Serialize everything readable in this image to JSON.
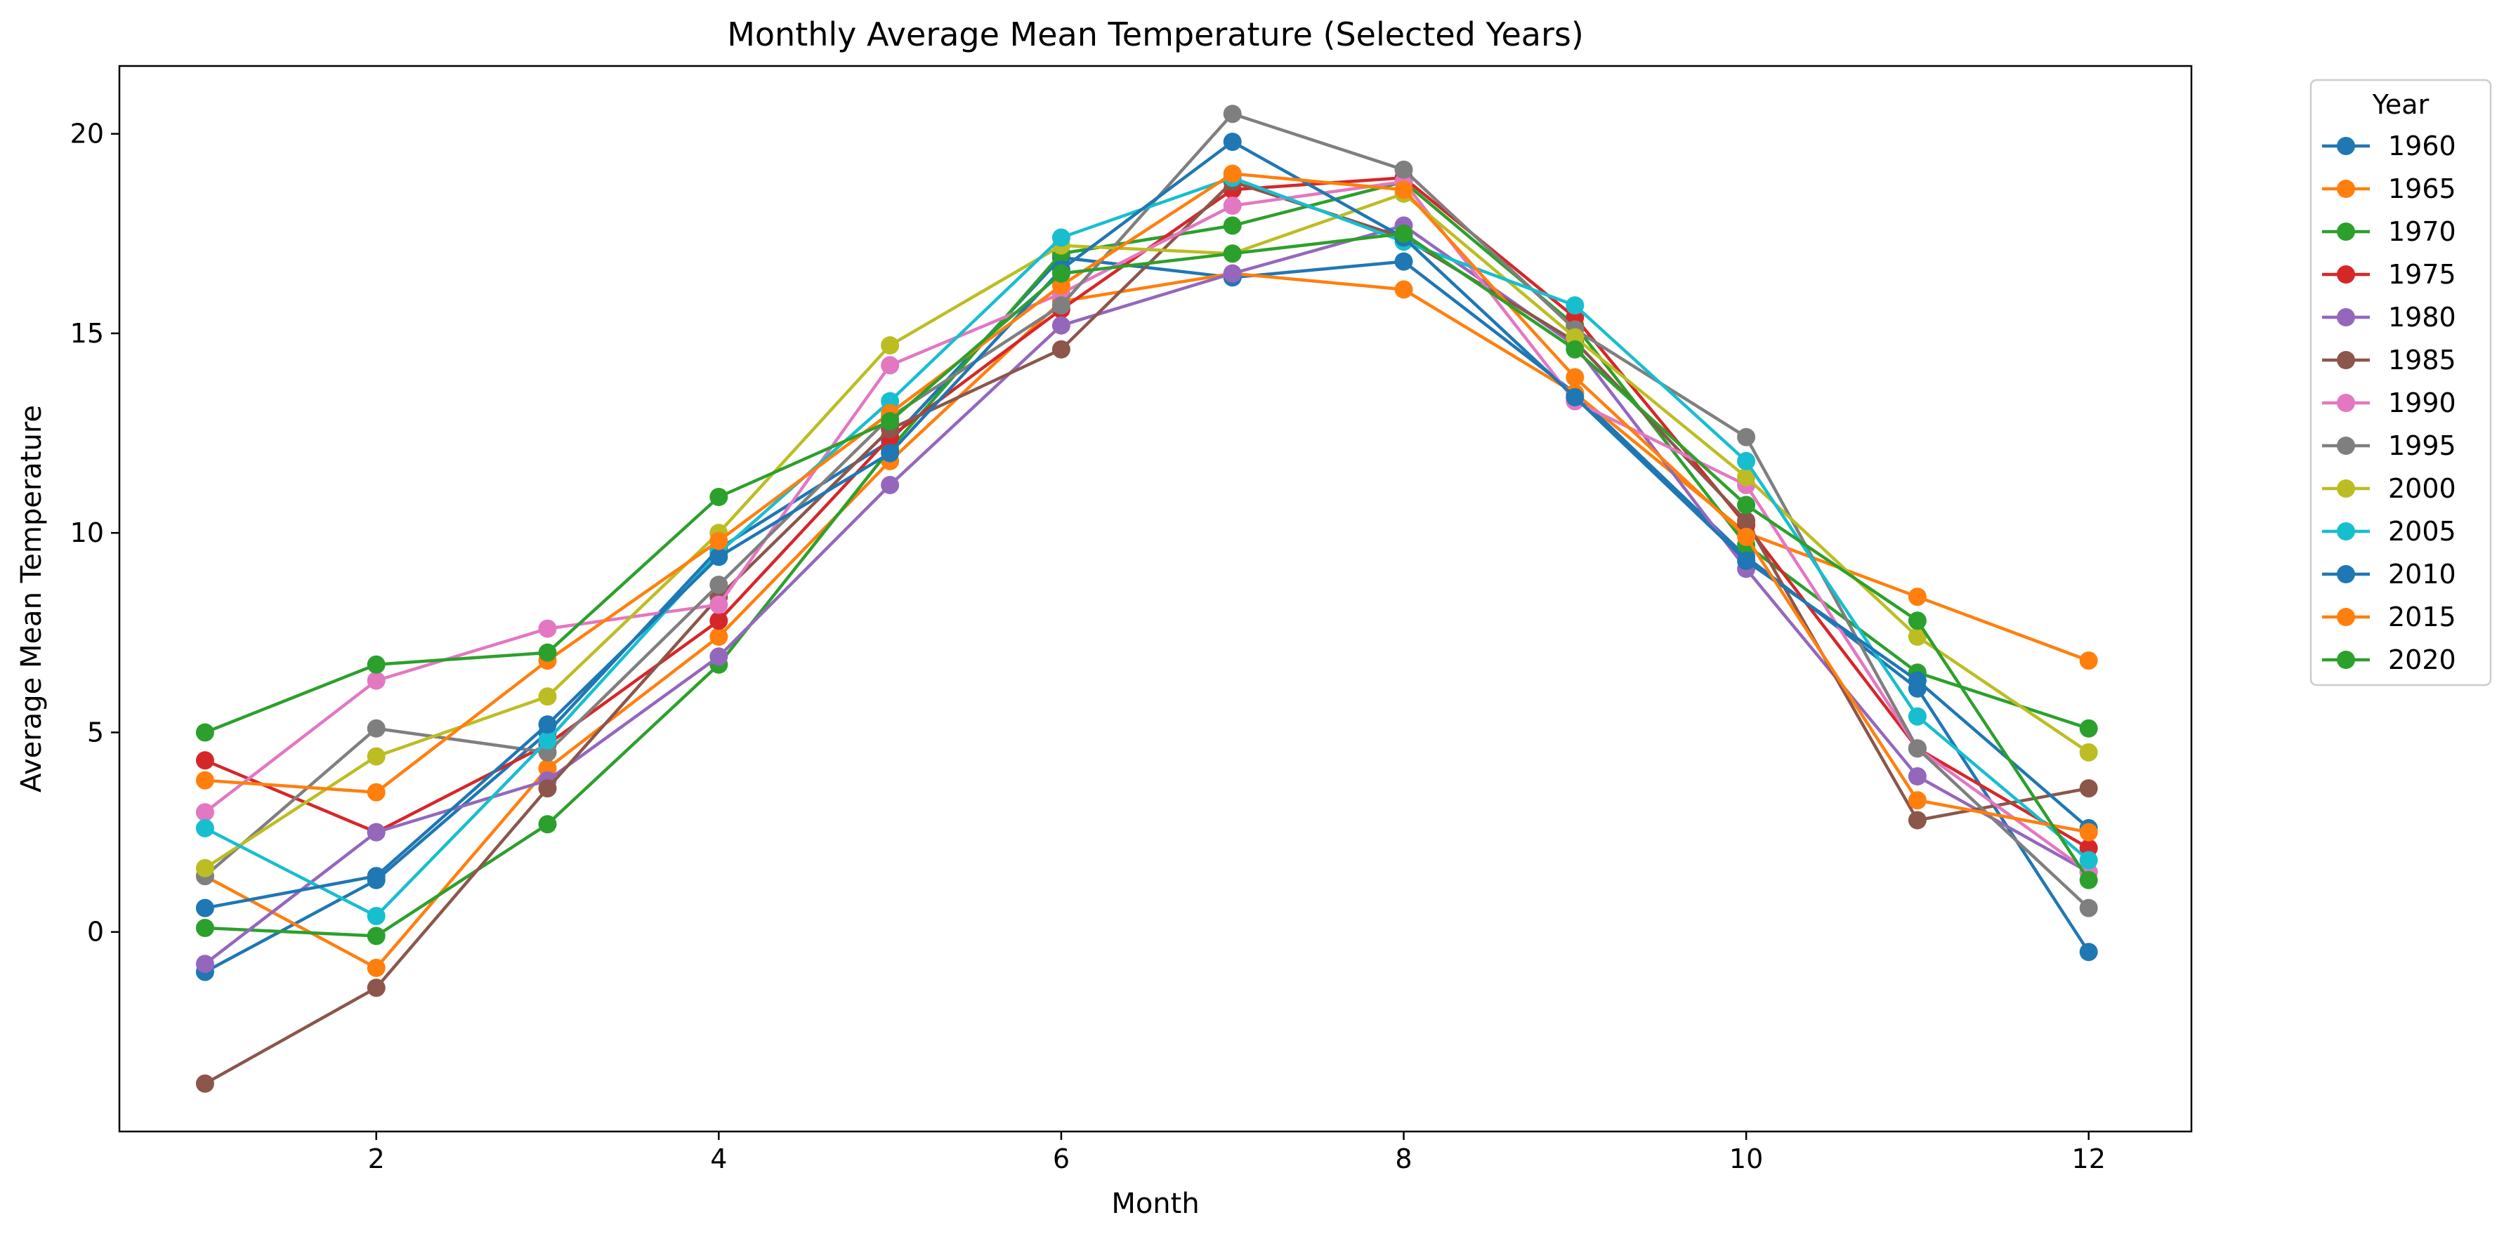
{
  "chart_data": {
    "type": "line",
    "title": "Monthly Average Mean Temperature (Selected Years)",
    "xlabel": "Month",
    "ylabel": "Average Mean Temperature",
    "xlim": [
      0.5,
      12.6
    ],
    "ylim": [
      -5.0,
      21.7
    ],
    "xticks": [
      2,
      4,
      6,
      8,
      10,
      12
    ],
    "yticks": [
      0,
      5,
      10,
      15,
      20
    ],
    "grid": false,
    "legend": {
      "title": "Year",
      "placement": "outside-top-right"
    },
    "x": [
      1,
      2,
      3,
      4,
      5,
      6,
      7,
      8,
      9,
      10,
      11,
      12
    ],
    "series": [
      {
        "name": "1960",
        "color": "#1f77b4",
        "values": [
          -1.0,
          1.3,
          5.0,
          9.6,
          12.3,
          16.9,
          16.4,
          16.8,
          13.5,
          9.4,
          6.1,
          -0.5
        ]
      },
      {
        "name": "1965",
        "color": "#ff7f0e",
        "values": [
          1.4,
          -0.9,
          4.1,
          7.4,
          11.8,
          15.8,
          16.5,
          16.1,
          13.5,
          10.0,
          8.4,
          6.8
        ]
      },
      {
        "name": "1970",
        "color": "#2ca02c",
        "values": [
          0.1,
          -0.1,
          2.7,
          6.7,
          12.1,
          17.0,
          17.7,
          18.8,
          15.2,
          9.7,
          6.5,
          5.1
        ]
      },
      {
        "name": "1975",
        "color": "#d62728",
        "values": [
          4.3,
          2.5,
          4.7,
          7.8,
          12.4,
          15.6,
          18.6,
          18.9,
          15.4,
          10.2,
          4.6,
          2.1
        ]
      },
      {
        "name": "1980",
        "color": "#9467bd",
        "values": [
          -0.8,
          2.5,
          3.8,
          6.9,
          11.2,
          15.2,
          16.5,
          17.7,
          14.7,
          9.1,
          3.9,
          1.5
        ]
      },
      {
        "name": "1985",
        "color": "#8c564b",
        "values": [
          -3.8,
          -1.4,
          3.6,
          8.4,
          12.6,
          14.6,
          18.8,
          17.4,
          14.8,
          10.3,
          2.8,
          3.6
        ]
      },
      {
        "name": "1990",
        "color": "#e377c2",
        "values": [
          3.0,
          6.3,
          7.6,
          8.2,
          14.2,
          16.0,
          18.2,
          18.8,
          13.3,
          11.2,
          4.6,
          1.5
        ]
      },
      {
        "name": "1995",
        "color": "#7f7f7f",
        "values": [
          1.4,
          5.1,
          4.5,
          8.7,
          12.9,
          15.7,
          20.5,
          19.1,
          15.1,
          12.4,
          4.6,
          0.6
        ]
      },
      {
        "name": "2000",
        "color": "#bcbd22",
        "values": [
          1.6,
          4.4,
          5.9,
          10.0,
          14.7,
          17.2,
          17.0,
          18.5,
          14.9,
          11.4,
          7.4,
          4.5
        ]
      },
      {
        "name": "2005",
        "color": "#17becf",
        "values": [
          2.6,
          0.4,
          4.8,
          9.5,
          13.3,
          17.4,
          18.9,
          17.3,
          15.7,
          11.8,
          5.4,
          1.8
        ]
      },
      {
        "name": "2010",
        "color": "#1f77b4",
        "values": [
          0.6,
          1.4,
          5.2,
          9.4,
          12.0,
          16.6,
          19.8,
          17.4,
          13.4,
          9.3,
          6.3,
          2.6
        ]
      },
      {
        "name": "2015",
        "color": "#ff7f0e",
        "values": [
          3.8,
          3.5,
          6.8,
          9.8,
          13.0,
          16.2,
          19.0,
          18.6,
          13.9,
          9.9,
          3.3,
          2.5
        ]
      },
      {
        "name": "2020",
        "color": "#2ca02c",
        "values": [
          5.0,
          6.7,
          7.0,
          10.9,
          12.8,
          16.5,
          17.0,
          17.5,
          14.6,
          10.7,
          7.8,
          1.3
        ]
      }
    ]
  }
}
